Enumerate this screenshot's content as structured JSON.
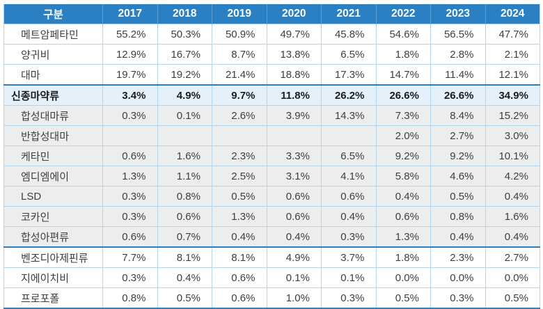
{
  "table": {
    "corner_label": "구분",
    "years": [
      "2017",
      "2018",
      "2019",
      "2020",
      "2021",
      "2022",
      "2023",
      "2024"
    ],
    "rows": [
      {
        "label": "메트암페타민",
        "style": "plain",
        "thick_bottom": false,
        "values": [
          "55.2%",
          "50.3%",
          "50.9%",
          "49.7%",
          "45.8%",
          "54.6%",
          "56.5%",
          "47.7%"
        ]
      },
      {
        "label": "양귀비",
        "style": "plain",
        "thick_bottom": false,
        "values": [
          "12.9%",
          "16.7%",
          "8.7%",
          "13.8%",
          "6.5%",
          "1.8%",
          "2.8%",
          "2.1%"
        ]
      },
      {
        "label": "대마",
        "style": "plain",
        "thick_bottom": false,
        "values": [
          "19.7%",
          "19.2%",
          "21.4%",
          "18.8%",
          "17.3%",
          "14.7%",
          "11.4%",
          "12.1%"
        ]
      },
      {
        "label": "신종마약류",
        "style": "section",
        "thick_bottom": false,
        "values": [
          "3.4%",
          "4.9%",
          "9.7%",
          "11.8%",
          "26.2%",
          "26.6%",
          "26.6%",
          "34.9%"
        ]
      },
      {
        "label": "합성대마류",
        "style": "sub",
        "thick_bottom": false,
        "values": [
          "0.3%",
          "0.1%",
          "2.6%",
          "3.9%",
          "14.3%",
          "7.3%",
          "8.4%",
          "15.2%"
        ]
      },
      {
        "label": "반합성대마",
        "style": "sub",
        "thick_bottom": false,
        "values": [
          "",
          "",
          "",
          "",
          "",
          "2.0%",
          "2.7%",
          "3.0%"
        ]
      },
      {
        "label": "케타민",
        "style": "sub",
        "thick_bottom": false,
        "values": [
          "0.6%",
          "1.6%",
          "2.3%",
          "3.3%",
          "6.5%",
          "9.2%",
          "9.2%",
          "10.1%"
        ]
      },
      {
        "label": "엠디엠에이",
        "style": "sub",
        "thick_bottom": false,
        "values": [
          "1.3%",
          "1.1%",
          "2.5%",
          "3.1%",
          "4.1%",
          "5.8%",
          "4.6%",
          "4.2%"
        ]
      },
      {
        "label": "LSD",
        "style": "sub",
        "thick_bottom": false,
        "values": [
          "0.3%",
          "0.8%",
          "0.5%",
          "0.6%",
          "0.6%",
          "0.4%",
          "0.5%",
          "0.4%"
        ]
      },
      {
        "label": "코카인",
        "style": "sub",
        "thick_bottom": false,
        "values": [
          "0.3%",
          "0.6%",
          "1.3%",
          "0.6%",
          "0.4%",
          "0.6%",
          "0.8%",
          "1.6%"
        ]
      },
      {
        "label": "합성아편류",
        "style": "sub",
        "thick_bottom": true,
        "values": [
          "0.6%",
          "0.7%",
          "0.4%",
          "0.4%",
          "0.3%",
          "1.3%",
          "0.4%",
          "0.4%"
        ]
      },
      {
        "label": "벤조디아제핀류",
        "style": "plain",
        "thick_bottom": false,
        "values": [
          "7.7%",
          "8.1%",
          "8.1%",
          "4.9%",
          "3.7%",
          "1.8%",
          "2.3%",
          "2.7%"
        ]
      },
      {
        "label": "지에이치비",
        "style": "plain",
        "thick_bottom": false,
        "values": [
          "0.3%",
          "0.4%",
          "0.6%",
          "0.1%",
          "0.1%",
          "0.0%",
          "0.0%",
          "0.0%"
        ]
      },
      {
        "label": "프로포폴",
        "style": "plain",
        "thick_bottom": true,
        "values": [
          "0.8%",
          "0.5%",
          "0.6%",
          "1.0%",
          "0.3%",
          "0.5%",
          "0.3%",
          "0.5%"
        ]
      }
    ]
  },
  "colors": {
    "header_bg": "#2b80c3",
    "header_divider": "#5e9fd2",
    "thin_border": "#b3d6ee",
    "thick_border": "#2b80c3",
    "section_row_bg": "#e4f1fb",
    "sub_row_bg": "#ebedee",
    "body_text": "#3e3e3e",
    "header_text": "#ffffff"
  }
}
